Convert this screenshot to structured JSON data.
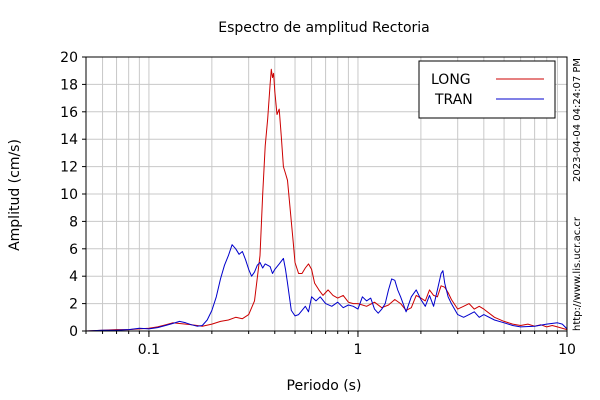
{
  "chart_data": {
    "type": "line",
    "title": "Espectro de amplitud Rectoria",
    "xlabel": "Periodo (s)",
    "ylabel": "Amplitud (cm/s)",
    "x_scale": "log",
    "xlim": [
      0.05,
      10
    ],
    "ylim": [
      0,
      20
    ],
    "x_ticks": [
      {
        "value": 0.1,
        "label": "0.1"
      },
      {
        "value": 1,
        "label": "1"
      },
      {
        "value": 10,
        "label": "10"
      }
    ],
    "y_ticks": [
      0,
      2,
      4,
      6,
      8,
      10,
      12,
      14,
      16,
      18,
      20
    ],
    "grid": true,
    "legend_position": "top-right",
    "timestamp": "2023-04-04 04:24:07 PM",
    "source_url": "http://www.lis.ucr.ac.cr",
    "series": [
      {
        "name": "LONG",
        "color": "#cc0000",
        "points": [
          [
            0.05,
            0.0
          ],
          [
            0.06,
            0.05
          ],
          [
            0.07,
            0.1
          ],
          [
            0.08,
            0.1
          ],
          [
            0.09,
            0.15
          ],
          [
            0.1,
            0.2
          ],
          [
            0.11,
            0.3
          ],
          [
            0.12,
            0.45
          ],
          [
            0.13,
            0.6
          ],
          [
            0.14,
            0.55
          ],
          [
            0.15,
            0.5
          ],
          [
            0.16,
            0.45
          ],
          [
            0.17,
            0.4
          ],
          [
            0.18,
            0.35
          ],
          [
            0.2,
            0.5
          ],
          [
            0.22,
            0.7
          ],
          [
            0.24,
            0.8
          ],
          [
            0.26,
            1.0
          ],
          [
            0.28,
            0.9
          ],
          [
            0.3,
            1.2
          ],
          [
            0.32,
            2.2
          ],
          [
            0.34,
            5.5
          ],
          [
            0.35,
            10.0
          ],
          [
            0.36,
            13.5
          ],
          [
            0.37,
            15.5
          ],
          [
            0.38,
            18.0
          ],
          [
            0.385,
            19.1
          ],
          [
            0.39,
            18.5
          ],
          [
            0.395,
            18.8
          ],
          [
            0.4,
            17.5
          ],
          [
            0.41,
            15.8
          ],
          [
            0.42,
            16.2
          ],
          [
            0.43,
            14.2
          ],
          [
            0.44,
            12.0
          ],
          [
            0.45,
            11.5
          ],
          [
            0.46,
            11.0
          ],
          [
            0.47,
            9.5
          ],
          [
            0.48,
            8.0
          ],
          [
            0.49,
            6.5
          ],
          [
            0.5,
            5.0
          ],
          [
            0.52,
            4.2
          ],
          [
            0.54,
            4.2
          ],
          [
            0.56,
            4.6
          ],
          [
            0.58,
            4.9
          ],
          [
            0.6,
            4.5
          ],
          [
            0.62,
            3.5
          ],
          [
            0.65,
            3.0
          ],
          [
            0.68,
            2.6
          ],
          [
            0.72,
            3.0
          ],
          [
            0.76,
            2.6
          ],
          [
            0.8,
            2.4
          ],
          [
            0.85,
            2.6
          ],
          [
            0.9,
            2.1
          ],
          [
            0.95,
            2.0
          ],
          [
            1.0,
            2.0
          ],
          [
            1.1,
            1.8
          ],
          [
            1.2,
            2.1
          ],
          [
            1.3,
            1.7
          ],
          [
            1.4,
            1.9
          ],
          [
            1.5,
            2.3
          ],
          [
            1.6,
            2.0
          ],
          [
            1.7,
            1.5
          ],
          [
            1.8,
            1.7
          ],
          [
            1.9,
            2.6
          ],
          [
            2.0,
            2.4
          ],
          [
            2.1,
            2.2
          ],
          [
            2.2,
            3.0
          ],
          [
            2.3,
            2.6
          ],
          [
            2.4,
            2.5
          ],
          [
            2.5,
            3.3
          ],
          [
            2.6,
            3.2
          ],
          [
            2.7,
            2.8
          ],
          [
            2.8,
            2.3
          ],
          [
            3.0,
            1.6
          ],
          [
            3.2,
            1.8
          ],
          [
            3.4,
            2.0
          ],
          [
            3.6,
            1.6
          ],
          [
            3.8,
            1.8
          ],
          [
            4.0,
            1.6
          ],
          [
            4.5,
            1.0
          ],
          [
            5.0,
            0.7
          ],
          [
            5.5,
            0.5
          ],
          [
            6.0,
            0.4
          ],
          [
            6.5,
            0.5
          ],
          [
            7.0,
            0.35
          ],
          [
            7.5,
            0.45
          ],
          [
            8.0,
            0.3
          ],
          [
            8.5,
            0.4
          ],
          [
            9.0,
            0.3
          ],
          [
            10.0,
            0.1
          ]
        ]
      },
      {
        "name": "TRAN",
        "color": "#0000cc",
        "points": [
          [
            0.05,
            0.0
          ],
          [
            0.06,
            0.05
          ],
          [
            0.07,
            0.05
          ],
          [
            0.08,
            0.1
          ],
          [
            0.09,
            0.2
          ],
          [
            0.1,
            0.15
          ],
          [
            0.11,
            0.25
          ],
          [
            0.12,
            0.4
          ],
          [
            0.13,
            0.55
          ],
          [
            0.14,
            0.7
          ],
          [
            0.15,
            0.6
          ],
          [
            0.16,
            0.45
          ],
          [
            0.17,
            0.35
          ],
          [
            0.18,
            0.4
          ],
          [
            0.19,
            0.8
          ],
          [
            0.2,
            1.5
          ],
          [
            0.21,
            2.5
          ],
          [
            0.22,
            3.8
          ],
          [
            0.23,
            4.8
          ],
          [
            0.24,
            5.5
          ],
          [
            0.25,
            6.3
          ],
          [
            0.26,
            6.0
          ],
          [
            0.27,
            5.6
          ],
          [
            0.28,
            5.8
          ],
          [
            0.29,
            5.2
          ],
          [
            0.3,
            4.5
          ],
          [
            0.31,
            4.0
          ],
          [
            0.32,
            4.3
          ],
          [
            0.33,
            4.8
          ],
          [
            0.34,
            5.0
          ],
          [
            0.35,
            4.6
          ],
          [
            0.36,
            4.9
          ],
          [
            0.38,
            4.7
          ],
          [
            0.39,
            4.2
          ],
          [
            0.4,
            4.5
          ],
          [
            0.42,
            4.9
          ],
          [
            0.44,
            5.3
          ],
          [
            0.45,
            4.5
          ],
          [
            0.46,
            3.5
          ],
          [
            0.47,
            2.5
          ],
          [
            0.48,
            1.5
          ],
          [
            0.5,
            1.1
          ],
          [
            0.52,
            1.2
          ],
          [
            0.54,
            1.5
          ],
          [
            0.56,
            1.8
          ],
          [
            0.58,
            1.4
          ],
          [
            0.6,
            2.5
          ],
          [
            0.63,
            2.2
          ],
          [
            0.66,
            2.5
          ],
          [
            0.7,
            2.0
          ],
          [
            0.75,
            1.8
          ],
          [
            0.8,
            2.1
          ],
          [
            0.85,
            1.7
          ],
          [
            0.9,
            1.9
          ],
          [
            0.95,
            1.8
          ],
          [
            1.0,
            1.6
          ],
          [
            1.05,
            2.5
          ],
          [
            1.1,
            2.2
          ],
          [
            1.15,
            2.4
          ],
          [
            1.2,
            1.6
          ],
          [
            1.25,
            1.3
          ],
          [
            1.3,
            1.6
          ],
          [
            1.35,
            2.0
          ],
          [
            1.4,
            3.0
          ],
          [
            1.45,
            3.8
          ],
          [
            1.5,
            3.7
          ],
          [
            1.55,
            3.0
          ],
          [
            1.6,
            2.5
          ],
          [
            1.7,
            1.4
          ],
          [
            1.8,
            2.5
          ],
          [
            1.9,
            3.0
          ],
          [
            2.0,
            2.3
          ],
          [
            2.1,
            1.8
          ],
          [
            2.2,
            2.6
          ],
          [
            2.3,
            1.8
          ],
          [
            2.4,
            3.0
          ],
          [
            2.5,
            4.2
          ],
          [
            2.55,
            4.4
          ],
          [
            2.6,
            3.5
          ],
          [
            2.7,
            2.5
          ],
          [
            2.8,
            2.0
          ],
          [
            3.0,
            1.2
          ],
          [
            3.2,
            1.0
          ],
          [
            3.4,
            1.2
          ],
          [
            3.6,
            1.4
          ],
          [
            3.8,
            1.0
          ],
          [
            4.0,
            1.2
          ],
          [
            4.5,
            0.8
          ],
          [
            5.0,
            0.6
          ],
          [
            5.5,
            0.4
          ],
          [
            6.0,
            0.3
          ],
          [
            7.0,
            0.35
          ],
          [
            8.0,
            0.5
          ],
          [
            9.0,
            0.6
          ],
          [
            9.5,
            0.5
          ],
          [
            10.0,
            0.15
          ]
        ]
      }
    ]
  }
}
